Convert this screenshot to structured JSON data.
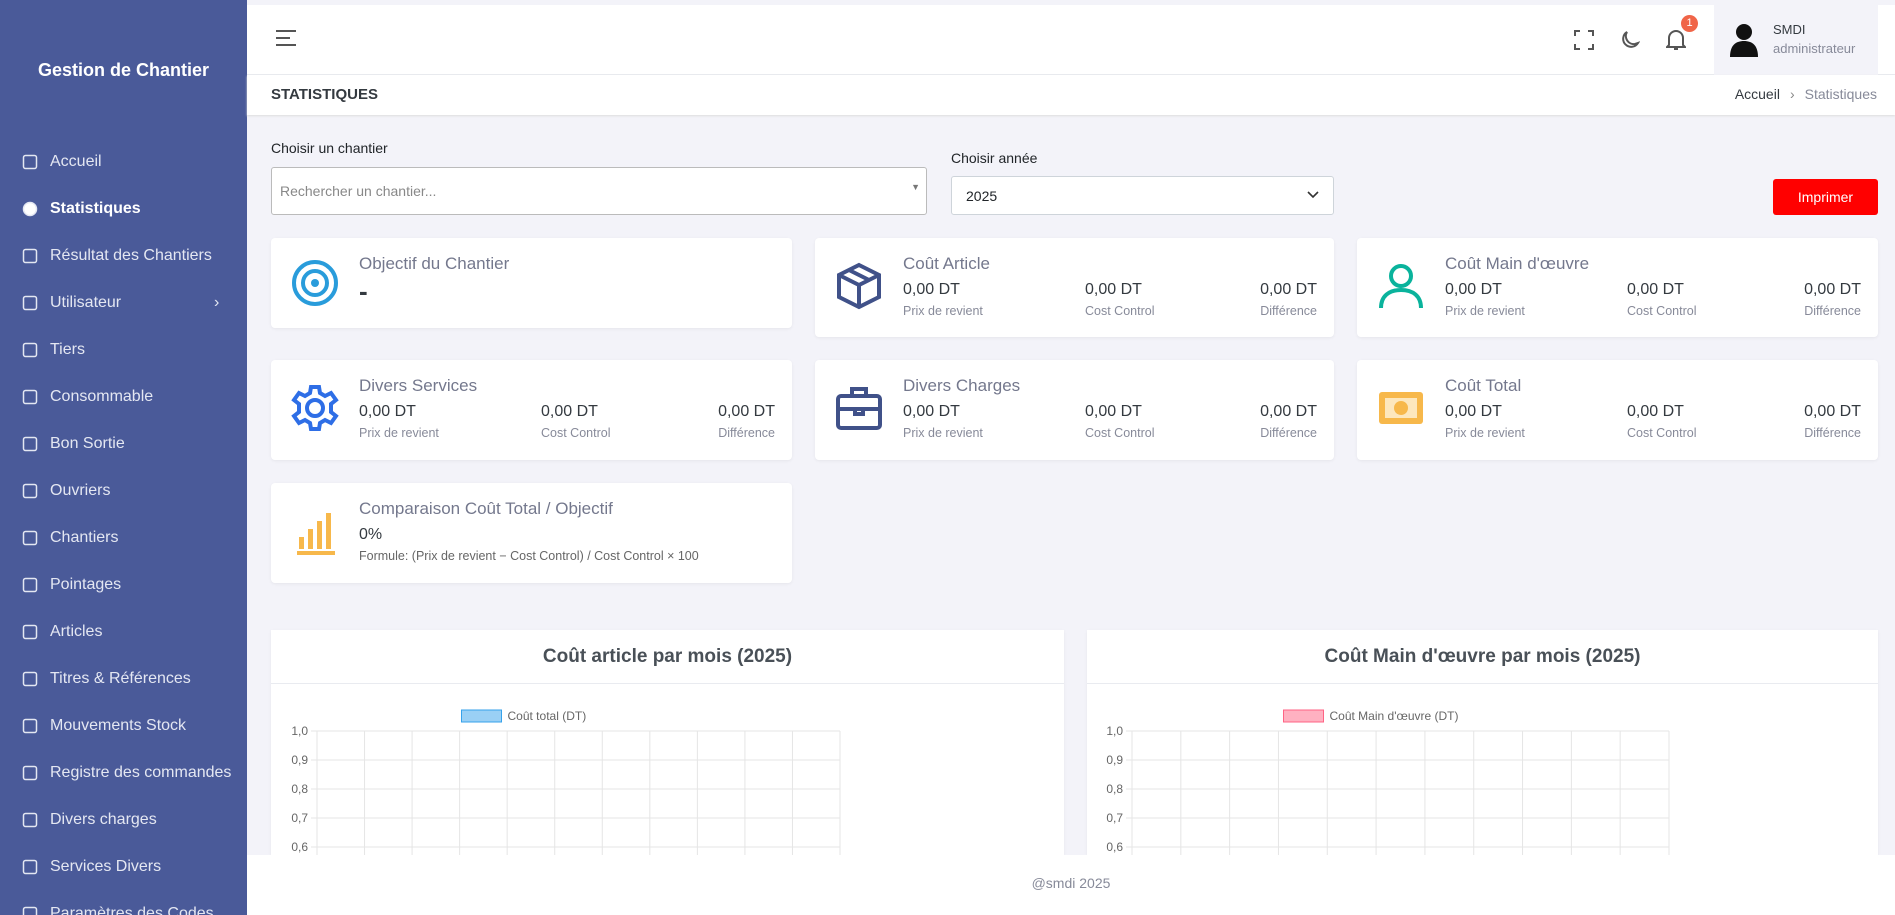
{
  "sidebar": {
    "brand": "Gestion de Chantier",
    "menu": [
      "Accueil",
      "Statistiques",
      "Résultat des Chantiers",
      "Utilisateur",
      "Tiers",
      "Consommable",
      "Bon Sortie",
      "Ouvriers",
      "Chantiers",
      "Pointages",
      "Articles",
      "Titres & Références",
      "Mouvements Stock",
      "Registre des commandes",
      "Divers charges",
      "Services Divers",
      "Paramètres des Codes"
    ]
  },
  "header": {
    "notifications": 1,
    "user": {
      "name": "SMDI",
      "role": "administrateur"
    }
  },
  "breadcrumb": {
    "title": "STATISTIQUES",
    "items": [
      "Accueil",
      "Statistiques"
    ]
  },
  "filters": {
    "chantier_label": "Choisir un chantier",
    "chantier_placeholder": "Rechercher un chantier...",
    "year_label": "Choisir année",
    "year": "2025",
    "print": "Imprimer"
  },
  "cards": [
    {
      "title": "Objectif du Chantier",
      "value": "-"
    },
    {
      "title": "Coût Article",
      "items": [
        {
          "value": "0,00 DT",
          "label": "Prix de revient"
        },
        {
          "value": "0,00 DT",
          "label": "Cost Control"
        },
        {
          "value": "0,00 DT",
          "label": "Différence"
        }
      ]
    },
    {
      "title": "Coût Main d'œuvre",
      "items": [
        {
          "value": "0,00 DT",
          "label": "Prix de revient"
        },
        {
          "value": "0,00 DT",
          "label": "Cost Control"
        },
        {
          "value": "0,00 DT",
          "label": "Différence"
        }
      ]
    },
    {
      "title": "Divers Services",
      "items": [
        {
          "value": "0,00 DT",
          "label": "Prix de revient"
        },
        {
          "value": "0,00 DT",
          "label": "Cost Control"
        },
        {
          "value": "0,00 DT",
          "label": "Différence"
        }
      ]
    },
    {
      "title": "Divers Charges",
      "items": [
        {
          "value": "0,00 DT",
          "label": "Prix de revient"
        },
        {
          "value": "0,00 DT",
          "label": "Cost Control"
        },
        {
          "value": "0,00 DT",
          "label": "Différence"
        }
      ]
    },
    {
      "title": "Coût Total",
      "items": [
        {
          "value": "0,00 DT",
          "label": "Prix de revient"
        },
        {
          "value": "0,00 DT",
          "label": "Cost Control"
        },
        {
          "value": "0,00 DT",
          "label": "Différence"
        }
      ]
    },
    {
      "title": "Comparaison Coût Total / Objectif",
      "value": "0%",
      "note": "Formule: (Prix de revient − Cost Control) / Cost Control × 100"
    }
  ],
  "charts": [
    {
      "title": "Coût article par mois (2025)",
      "series_name": "Coût total (DT)",
      "color": "rgba(54,162,235,0.5)",
      "border": "#36a2eb",
      "ylim": [
        0,
        1
      ],
      "yticks": [
        {
          "value": 1,
          "label": "1,0"
        },
        {
          "value": 0.9,
          "label": "0,9"
        },
        {
          "value": 0.8,
          "label": "0,8"
        },
        {
          "value": 0.7,
          "label": "0,7"
        },
        {
          "value": 0.6,
          "label": "0,6"
        }
      ]
    },
    {
      "title": "Coût Main d'œuvre par mois (2025)",
      "series_name": "Coût Main d'œuvre (DT)",
      "color": "rgba(255,99,132,0.5)",
      "border": "#ff6384",
      "ylim": [
        0,
        1
      ],
      "yticks": [
        {
          "value": 1,
          "label": "1,0"
        },
        {
          "value": 0.9,
          "label": "0,9"
        },
        {
          "value": 0.8,
          "label": "0,8"
        },
        {
          "value": 0.7,
          "label": "0,7"
        },
        {
          "value": 0.6,
          "label": "0,6"
        }
      ]
    }
  ],
  "footer": "@smdi 2025"
}
